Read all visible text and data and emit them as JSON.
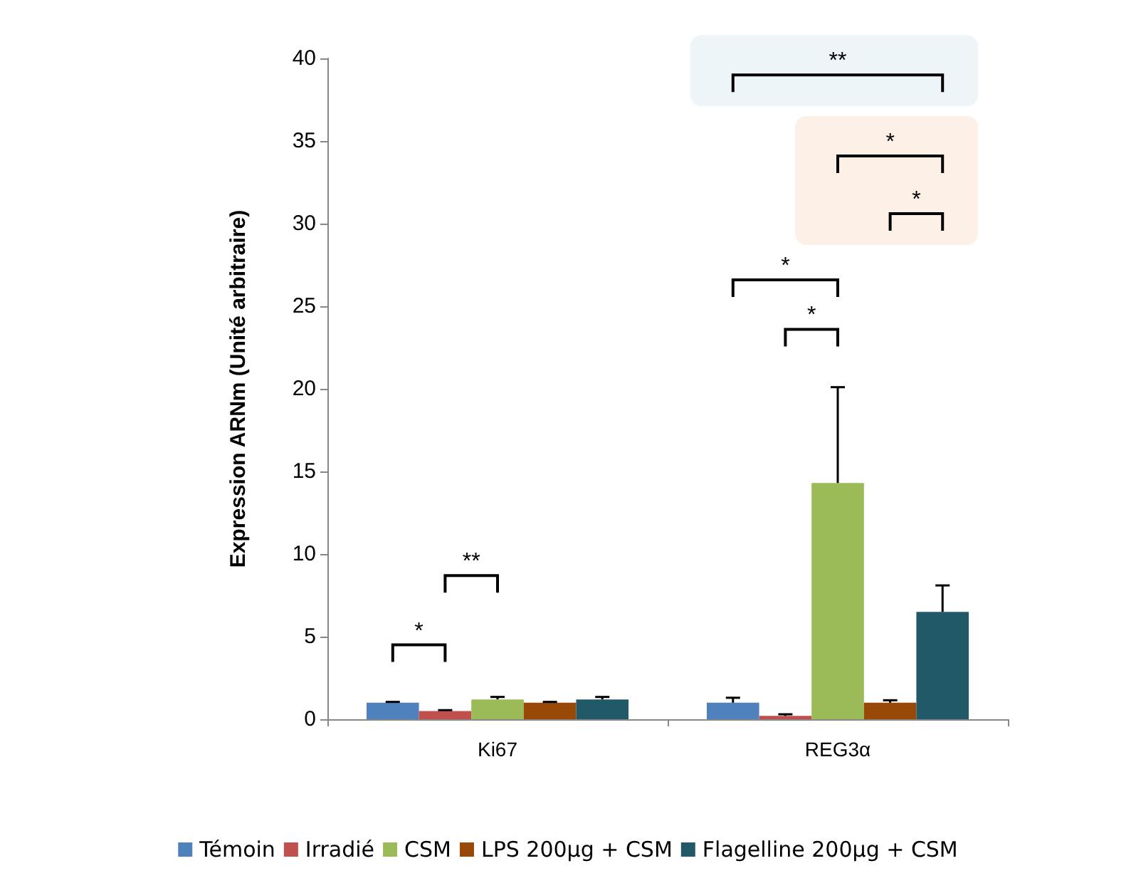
{
  "chart_data": {
    "type": "bar",
    "ylabel": "Expression ARNm (Unité arbitraire)",
    "categories": [
      "Ki67",
      "REG3α"
    ],
    "series": [
      {
        "name": "Témoin",
        "color": "#4f81bd",
        "values": [
          1.0,
          1.0
        ],
        "errors": [
          [
            1.0,
            1.05
          ],
          [
            1.0,
            1.3
          ]
        ]
      },
      {
        "name": "Irradié",
        "color": "#c0504d",
        "values": [
          0.5,
          0.2
        ],
        "errors": [
          [
            0.5,
            0.55
          ],
          [
            0.2,
            0.3
          ]
        ]
      },
      {
        "name": "CSM",
        "color": "#9bbb59",
        "values": [
          1.2,
          14.3
        ],
        "errors": [
          [
            1.2,
            1.35
          ],
          [
            14.3,
            20.1
          ]
        ]
      },
      {
        "name": "LPS 200µg + CSM",
        "color": "#984807",
        "values": [
          1.0,
          1.0
        ],
        "errors": [
          [
            1.0,
            1.05
          ],
          [
            1.0,
            1.15
          ]
        ]
      },
      {
        "name": "Flagelline 200µg + CSM",
        "color": "#215968",
        "values": [
          1.2,
          6.5
        ],
        "errors": [
          [
            1.2,
            1.35
          ],
          [
            6.5,
            8.1
          ]
        ]
      }
    ],
    "annotations": [
      "*",
      "**",
      "**",
      "*",
      "*",
      "*",
      "*"
    ],
    "ylim": [
      0,
      40
    ],
    "yticks": [
      0,
      5,
      10,
      15,
      20,
      25,
      30,
      35,
      40
    ],
    "grid": false,
    "legend": "bottom"
  }
}
